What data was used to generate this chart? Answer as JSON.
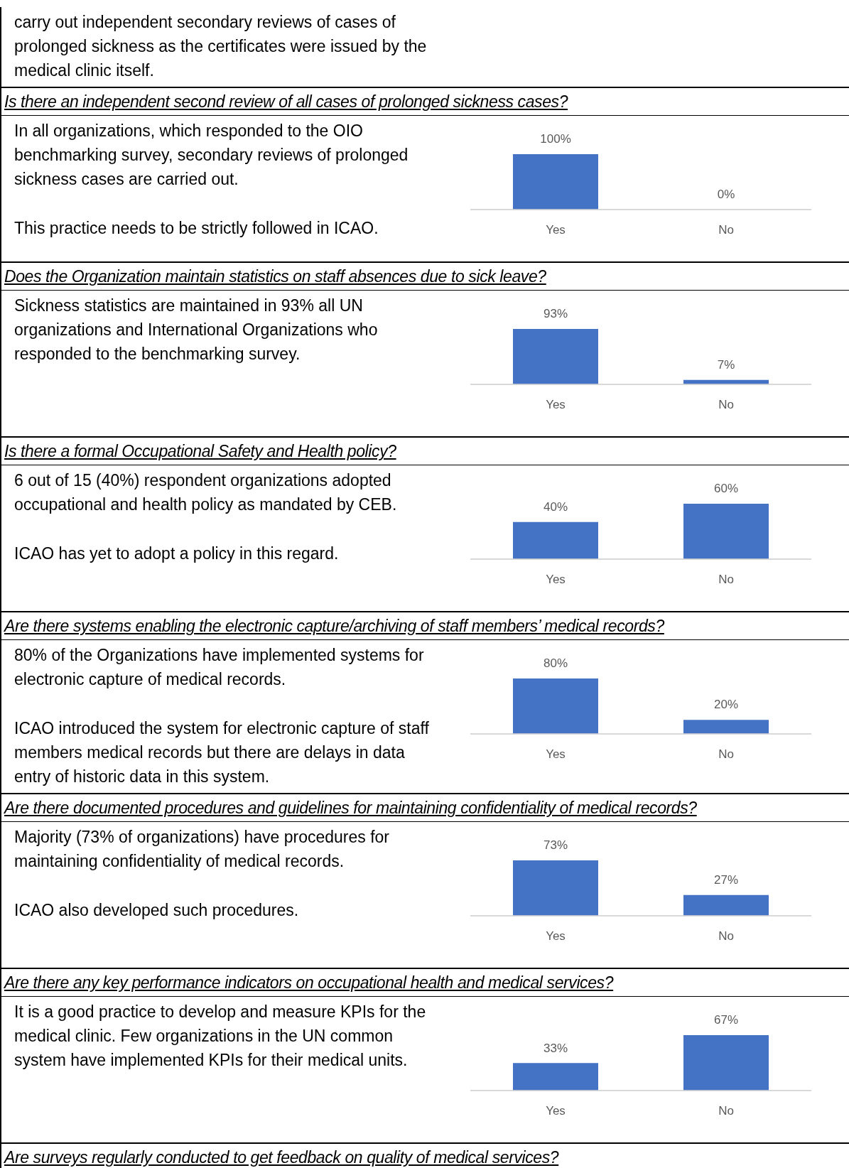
{
  "chart_data": [
    {
      "type": "other",
      "annotations": [
        "carry out independent secondary reviews of cases of prolonged sickness as the certificates were issued by the medical clinic itself."
      ]
    },
    {
      "type": "bar",
      "title": "Is there an independent second review of all cases of prolonged sickness cases?",
      "annotations": [
        "In all organizations, which responded to the OIO benchmarking survey, secondary reviews of prolonged sickness cases are carried out.",
        "This practice needs to be strictly followed in ICAO."
      ],
      "categories": [
        "Yes",
        "No"
      ],
      "values": [
        100,
        0
      ],
      "value_labels": [
        "100%",
        "0%"
      ],
      "color": "#4472c4"
    },
    {
      "type": "bar",
      "title": "Does the Organization maintain statistics on staff absences due to sick leave?",
      "annotations": [
        "Sickness statistics are maintained in 93% all UN organizations and International Organizations who responded to the benchmarking survey."
      ],
      "categories": [
        "Yes",
        "No"
      ],
      "values": [
        93,
        7
      ],
      "value_labels": [
        "93%",
        "7%"
      ],
      "color": "#4472c4"
    },
    {
      "type": "bar",
      "title": "Is there a formal Occupational Safety and Health policy?",
      "annotations": [
        "6 out of 15 (40%) respondent organizations adopted occupational and health policy as mandated by CEB.",
        "ICAO has yet to adopt a policy in this regard."
      ],
      "categories": [
        "Yes",
        "No"
      ],
      "values": [
        40,
        60
      ],
      "value_labels": [
        "40%",
        "60%"
      ],
      "color": "#4472c4"
    },
    {
      "type": "bar",
      "title": "Are there systems enabling the electronic capture/archiving of staff members’ medical records?",
      "annotations": [
        "80% of the Organizations have implemented systems for electronic capture of medical records.",
        "ICAO introduced the system for electronic capture of staff members medical records but there are delays in data entry of historic data in this system."
      ],
      "categories": [
        "Yes",
        "No"
      ],
      "values": [
        80,
        20
      ],
      "value_labels": [
        "80%",
        "20%"
      ],
      "color": "#4472c4"
    },
    {
      "type": "bar",
      "title": "Are there documented procedures and guidelines for maintaining confidentiality of medical records?",
      "annotations": [
        "Majority (73% of organizations) have procedures for maintaining confidentiality of medical records.",
        "ICAO also developed such procedures."
      ],
      "categories": [
        "Yes",
        "No"
      ],
      "values": [
        73,
        27
      ],
      "value_labels": [
        "73%",
        "27%"
      ],
      "color": "#4472c4"
    },
    {
      "type": "bar",
      "title": "Are there any key performance indicators on occupational health and medical services?",
      "annotations": [
        "It is a good practice to develop and measure KPIs for the medical clinic. Few organizations in the UN common system have implemented KPIs for their medical units."
      ],
      "categories": [
        "Yes",
        "No"
      ],
      "values": [
        33,
        67
      ],
      "value_labels": [
        "33%",
        "67%"
      ],
      "color": "#4472c4"
    },
    {
      "type": "other",
      "title": "Are surveys regularly conducted to get feedback on quality of medical services?"
    }
  ]
}
